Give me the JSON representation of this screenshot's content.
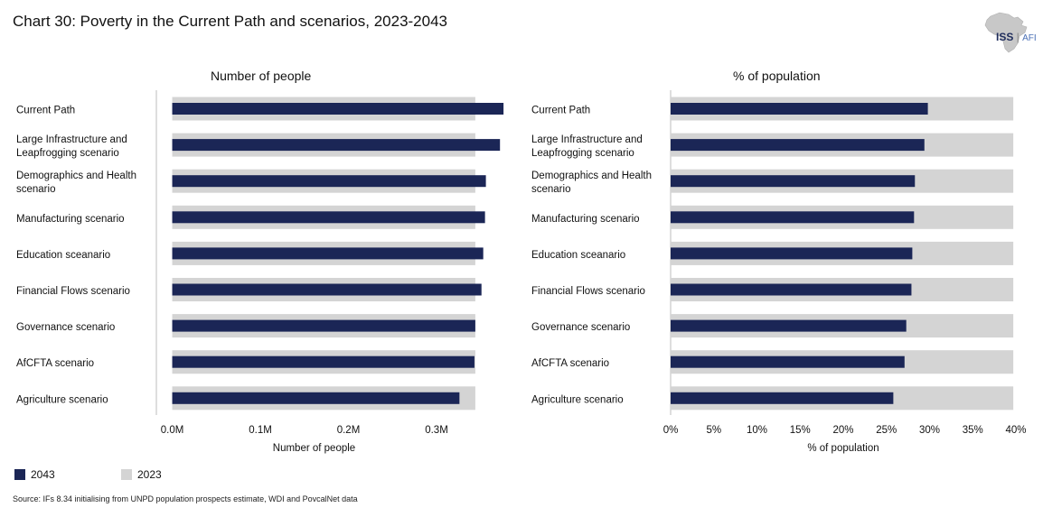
{
  "title": "Chart 30: Poverty in the Current Path and scenarios, 2023-2043",
  "logo": {
    "main": "ISS",
    "sub": "AFI",
    "icon": "africa-map-icon"
  },
  "colors": {
    "s2043": "#1b2656",
    "s2023": "#d4d4d4"
  },
  "legend": [
    {
      "label": "2043",
      "color": "#1b2656"
    },
    {
      "label": "2023",
      "color": "#d4d4d4"
    }
  ],
  "source": "Source: IFs 8.34 initialising from UNPD population prospects estimate, WDI and PovcalNet data",
  "chart_data": [
    {
      "type": "bar",
      "orientation": "horizontal",
      "title": "Number of people",
      "xlabel": "Number of people",
      "categories": [
        [
          "Current Path"
        ],
        [
          "Large Infrastructure and",
          "Leapfrogging scenario"
        ],
        [
          "Demographics and Health",
          "scenario"
        ],
        [
          "Manufacturing scenario"
        ],
        [
          "Education sceanario"
        ],
        [
          "Financial Flows scenario"
        ],
        [
          "Governance scenario"
        ],
        [
          "AfCFTA scenario"
        ],
        [
          "Agriculture scenario"
        ]
      ],
      "xticks": [
        0,
        0.1,
        0.2,
        0.3
      ],
      "xtick_labels": [
        "0.0M",
        "0.1M",
        "0.2M",
        "0.3M"
      ],
      "xlim": [
        -0.018,
        0.34
      ],
      "series": [
        {
          "name": "2023",
          "values": [
            0.344,
            0.344,
            0.344,
            0.344,
            0.344,
            0.344,
            0.344,
            0.344,
            0.344
          ]
        },
        {
          "name": "2043",
          "values": [
            0.376,
            0.372,
            0.356,
            0.355,
            0.353,
            0.351,
            0.344,
            0.343,
            0.326
          ]
        }
      ]
    },
    {
      "type": "bar",
      "orientation": "horizontal",
      "title": "% of population",
      "xlabel": "% of population",
      "categories": [
        [
          "Current Path"
        ],
        [
          "Large Infrastructure and",
          "Leapfrogging scenario"
        ],
        [
          "Demographics and Health",
          "scenario"
        ],
        [
          "Manufacturing scenario"
        ],
        [
          "Education sceanario"
        ],
        [
          "Financial Flows scenario"
        ],
        [
          "Governance scenario"
        ],
        [
          "AfCFTA scenario"
        ],
        [
          "Agriculture scenario"
        ]
      ],
      "xticks": [
        0,
        5,
        10,
        15,
        20,
        25,
        30,
        35,
        40
      ],
      "xtick_labels": [
        "0%",
        "5%",
        "10%",
        "15%",
        "20%",
        "25%",
        "30%",
        "35%",
        "40%"
      ],
      "xlim": [
        0,
        40
      ],
      "series": [
        {
          "name": "2023",
          "values": [
            39.7,
            39.7,
            39.7,
            39.7,
            39.7,
            39.7,
            39.7,
            39.7,
            39.7
          ]
        },
        {
          "name": "2043",
          "values": [
            29.8,
            29.4,
            28.3,
            28.2,
            28.0,
            27.9,
            27.3,
            27.1,
            25.8
          ]
        }
      ]
    }
  ]
}
